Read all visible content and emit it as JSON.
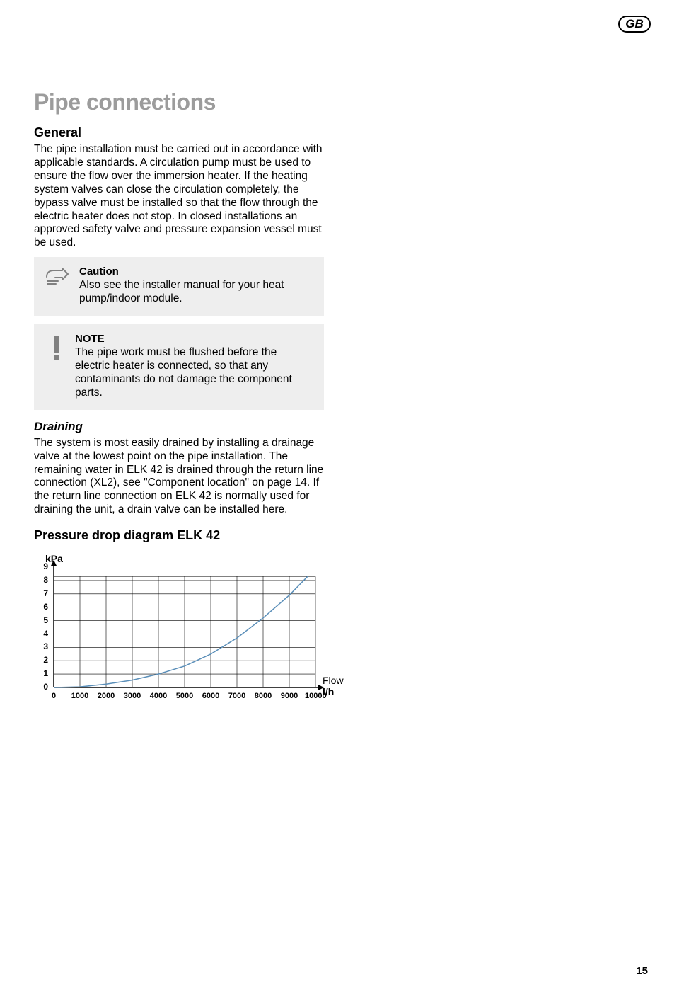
{
  "header": {
    "language_badge": "GB"
  },
  "title": "Pipe connections",
  "general": {
    "heading": "General",
    "paragraph": "The pipe installation must be carried out in accordance with applicable standards.\nA circulation pump must be used to ensure the flow over the immersion heater. If the heating system valves can close the circulation completely, the bypass valve must be installed so that the flow through the electric heater does not stop. In closed installations an approved safety valve and pressure expansion vessel must be used."
  },
  "caution_box": {
    "title": "Caution",
    "text": "Also see the installer manual for your heat pump/indoor module."
  },
  "note_box": {
    "title": "NOTE",
    "text": "The pipe work must be flushed before the electric heater is connected, so that any contaminants do not damage the component parts."
  },
  "draining": {
    "heading": "Draining",
    "paragraph": "The system is most easily drained by installing a drainage valve at the lowest point on the pipe installation. The remaining water in ELK 42 is drained through the return line connection (XL2), see \"Component location\" on page 14. If the return line connection on ELK 42 is normally used for draining the unit, a drain valve can be installed here."
  },
  "chart": {
    "heading": "Pressure drop diagram ELK 42",
    "type": "line",
    "y_axis_label": "kPa",
    "x_axis_label_top": "Flow",
    "x_axis_label_bottom": "l/h",
    "xlim": [
      0,
      10000
    ],
    "ylim": [
      0,
      9
    ],
    "x_ticks": [
      0,
      1000,
      2000,
      3000,
      4000,
      5000,
      6000,
      7000,
      8000,
      9000,
      10000
    ],
    "y_ticks": [
      0,
      1,
      2,
      3,
      4,
      5,
      6,
      7,
      8,
      9
    ],
    "grid_color": "#000000",
    "background_color": "#ffffff",
    "line_color": "#5b8fb9",
    "line_width": 1.5,
    "axis_weight": 1.5,
    "series": [
      {
        "x": 0,
        "y": 0
      },
      {
        "x": 1000,
        "y": 0.05
      },
      {
        "x": 2000,
        "y": 0.25
      },
      {
        "x": 3000,
        "y": 0.55
      },
      {
        "x": 4000,
        "y": 1.0
      },
      {
        "x": 5000,
        "y": 1.6
      },
      {
        "x": 6000,
        "y": 2.5
      },
      {
        "x": 7000,
        "y": 3.7
      },
      {
        "x": 8000,
        "y": 5.2
      },
      {
        "x": 9000,
        "y": 6.9
      },
      {
        "x": 9700,
        "y": 8.3
      }
    ]
  },
  "page_number": "15"
}
